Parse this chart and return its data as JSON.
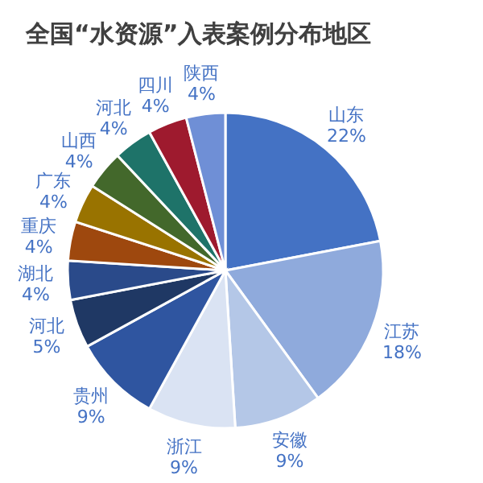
{
  "chart_data": {
    "type": "pie",
    "title": "全国“水资源”入表案例分布地区",
    "categories": [
      "山东",
      "江苏",
      "安徽",
      "浙江",
      "贵州",
      "河北",
      "湖北",
      "重庆",
      "广东",
      "山西",
      "河北",
      "四川",
      "陕西"
    ],
    "values": [
      22,
      18,
      9,
      9,
      9,
      5,
      4,
      4,
      4,
      4,
      4,
      4,
      4
    ],
    "colors": [
      "#4472c4",
      "#8faadc",
      "#b4c7e7",
      "#dae3f3",
      "#2f55a0",
      "#1f3864",
      "#2a4a8a",
      "#9e480e",
      "#997300",
      "#43682b",
      "#1e7369",
      "#9e1a2e",
      "#6f8fd6"
    ],
    "value_labels": [
      "22%",
      "18%",
      "9%",
      "9%",
      "9%",
      "5%",
      "4%",
      "4%",
      "4%",
      "4%",
      "4%",
      "4%",
      "4%"
    ]
  }
}
